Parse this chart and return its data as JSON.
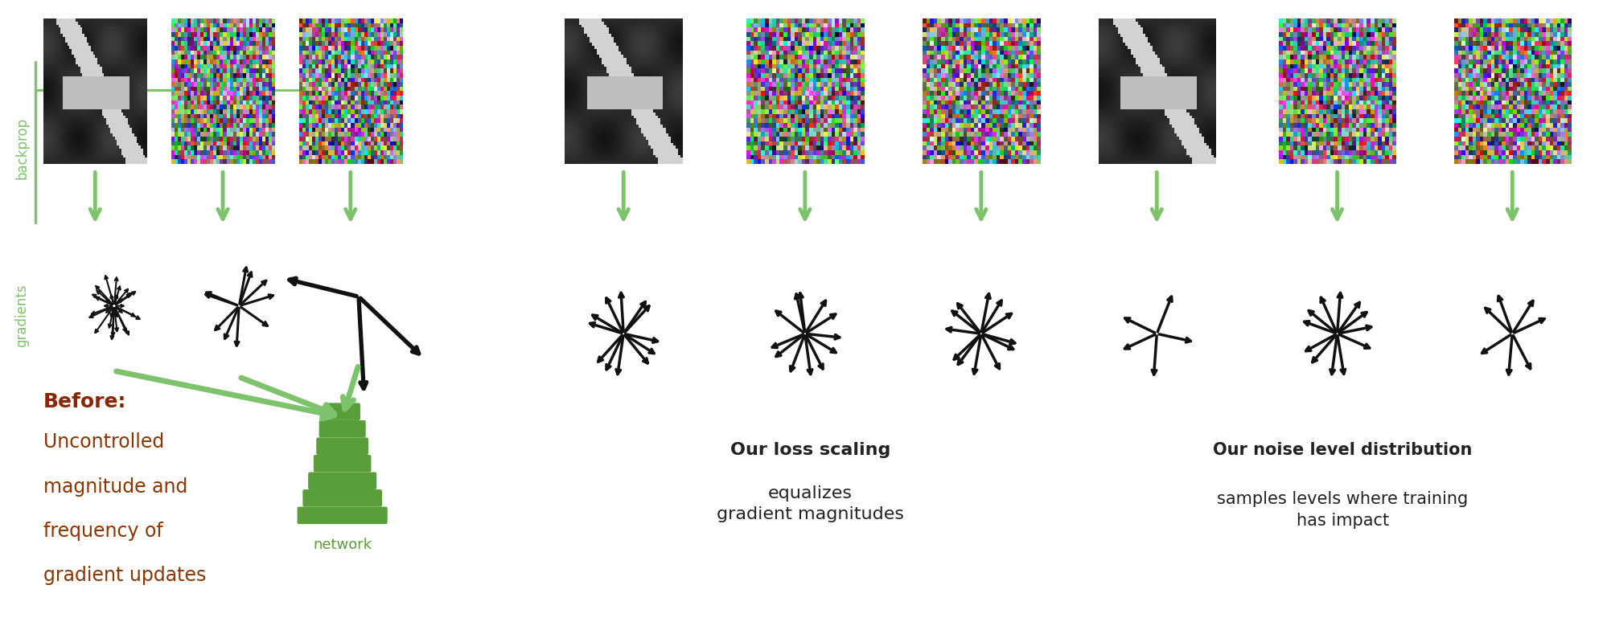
{
  "bg_left": "#fde8d8",
  "bg_right": "#e8f0e0",
  "green": "#7dc36b",
  "black": "#111111",
  "brown_bold": "#8b2500",
  "brown_text": "#8b3500",
  "green_text": "#5a9e3a",
  "dark": "#222222",
  "before_label": "Before:",
  "before_desc_lines": [
    "Uncontrolled",
    "magnitude and",
    "frequency of",
    "gradient updates"
  ],
  "backprop_label": "backprop",
  "gradients_label": "gradients",
  "network_label": "network",
  "loss_bold": "Our loss scaling",
  "loss_rest": "equalizes\ngradient magnitudes",
  "noise_bold": "Our noise level distribution",
  "noise_rest": "samples levels where training\nhas impact"
}
